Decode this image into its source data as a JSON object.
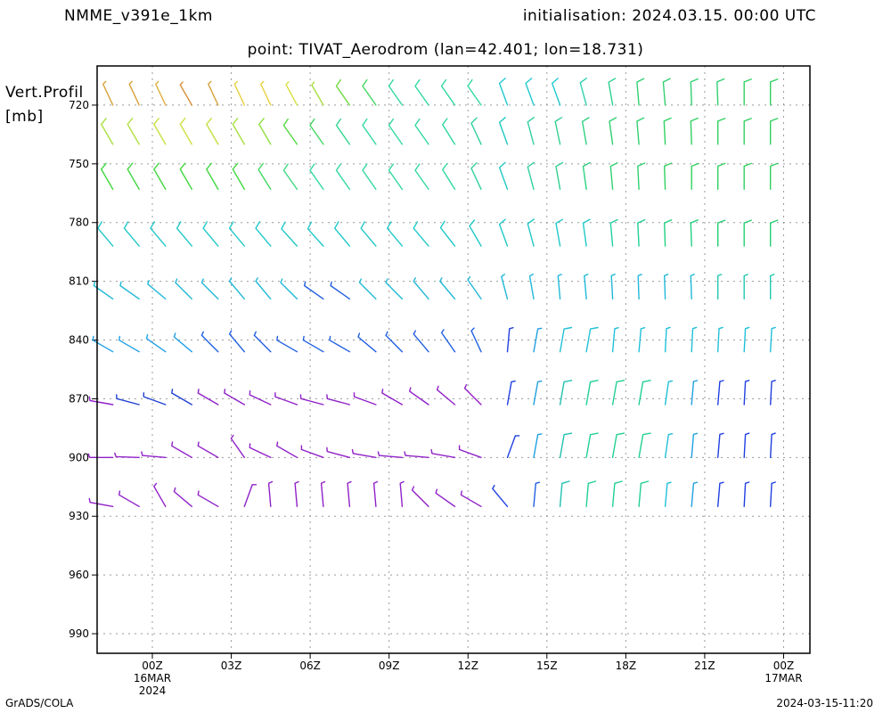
{
  "header": {
    "model": "NMME_v391e_1km",
    "initialisation": "initialisation: 2024.03.15. 00:00 UTC",
    "point": "point: TIVAT_Aerodrom (lan=42.401; lon=18.731)"
  },
  "footer": {
    "left": "GrADS/COLA",
    "right": "2024-03-15-11:20"
  },
  "chart_data": {
    "type": "wind_barb_time_height",
    "ylabel": "Vert.Profil",
    "yunit": "[mb]",
    "yticks": [
      720,
      750,
      780,
      810,
      840,
      870,
      900,
      930,
      960,
      990
    ],
    "ylim": [
      700,
      1000
    ],
    "xlim_hours": [
      -2.1,
      25
    ],
    "xticks": [
      {
        "hour": 0,
        "label": "00Z",
        "sub1": "16MAR",
        "sub2": "2024"
      },
      {
        "hour": 3,
        "label": "03Z"
      },
      {
        "hour": 6,
        "label": "06Z"
      },
      {
        "hour": 9,
        "label": "09Z"
      },
      {
        "hour": 12,
        "label": "12Z"
      },
      {
        "hour": 15,
        "label": "15Z"
      },
      {
        "hour": 18,
        "label": "18Z"
      },
      {
        "hour": 21,
        "label": "21Z"
      },
      {
        "hour": 24,
        "label": "00Z",
        "sub1": "17MAR"
      }
    ],
    "grid": true,
    "time_hours": [
      -1.5,
      -0.5,
      0.5,
      1.5,
      2.5,
      3.5,
      4.5,
      5.5,
      6.5,
      7.5,
      8.5,
      9.5,
      10.5,
      11.5,
      12.5,
      13.5,
      14.5,
      15.5,
      16.5,
      17.5,
      18.5,
      19.5,
      20.5,
      21.5,
      22.5,
      23.5
    ],
    "levels_mb": [
      720,
      740,
      763,
      792,
      819,
      846,
      873,
      900,
      925
    ],
    "barbs": [
      [
        [
          335,
          7,
          "#d8a23a"
        ],
        [
          335,
          7,
          "#d8a23a"
        ],
        [
          335,
          7,
          "#e0b040"
        ],
        [
          330,
          7,
          "#d8903a"
        ],
        [
          335,
          7,
          "#d8a23a"
        ],
        [
          335,
          7,
          "#e8d040"
        ],
        [
          335,
          7,
          "#e8d040"
        ],
        [
          332,
          7,
          "#d8e040"
        ],
        [
          330,
          7,
          "#a8e040"
        ],
        [
          325,
          8,
          "#70d840"
        ],
        [
          325,
          8,
          "#40d860"
        ],
        [
          325,
          8,
          "#30d8a0"
        ],
        [
          325,
          8,
          "#30d8a0"
        ],
        [
          325,
          8,
          "#30d8a0"
        ],
        [
          325,
          8,
          "#30d8a0"
        ],
        [
          340,
          9,
          "#20c8d0"
        ],
        [
          340,
          9,
          "#20c8d0"
        ],
        [
          340,
          9,
          "#20c8d0"
        ],
        [
          345,
          10,
          "#30d0b0"
        ],
        [
          350,
          10,
          "#30d090"
        ],
        [
          355,
          10,
          "#30d070"
        ],
        [
          355,
          10,
          "#30d070"
        ],
        [
          358,
          10,
          "#30d070"
        ],
        [
          358,
          10,
          "#30d070"
        ],
        [
          360,
          10,
          "#30d060"
        ],
        [
          360,
          10,
          "#30d060"
        ]
      ],
      [
        [
          330,
          8,
          "#a8e040"
        ],
        [
          330,
          8,
          "#b0e040"
        ],
        [
          330,
          8,
          "#c8e040"
        ],
        [
          330,
          8,
          "#d0e040"
        ],
        [
          330,
          8,
          "#c0e040"
        ],
        [
          330,
          8,
          "#a8e040"
        ],
        [
          330,
          8,
          "#90e040"
        ],
        [
          325,
          9,
          "#50d840"
        ],
        [
          325,
          9,
          "#40d860"
        ],
        [
          325,
          9,
          "#30d890"
        ],
        [
          325,
          9,
          "#30d8a0"
        ],
        [
          325,
          9,
          "#30d8a0"
        ],
        [
          325,
          9,
          "#30d8a0"
        ],
        [
          328,
          9,
          "#30d8a0"
        ],
        [
          335,
          9,
          "#30d0a0"
        ],
        [
          340,
          9,
          "#20c8c0"
        ],
        [
          345,
          10,
          "#30d0a0"
        ],
        [
          348,
          10,
          "#30d090"
        ],
        [
          350,
          10,
          "#30d080"
        ],
        [
          352,
          10,
          "#30d070"
        ],
        [
          355,
          10,
          "#30d070"
        ],
        [
          357,
          10,
          "#30d060"
        ],
        [
          358,
          10,
          "#30d060"
        ],
        [
          360,
          10,
          "#30d060"
        ],
        [
          360,
          10,
          "#30d060"
        ],
        [
          360,
          10,
          "#30d060"
        ]
      ],
      [
        [
          330,
          9,
          "#40d840"
        ],
        [
          330,
          9,
          "#40d840"
        ],
        [
          330,
          9,
          "#40d840"
        ],
        [
          330,
          9,
          "#40d840"
        ],
        [
          330,
          9,
          "#40d840"
        ],
        [
          330,
          9,
          "#40d840"
        ],
        [
          328,
          9,
          "#40d860"
        ],
        [
          325,
          9,
          "#40d880"
        ],
        [
          325,
          9,
          "#30d8a0"
        ],
        [
          325,
          9,
          "#30d8a0"
        ],
        [
          325,
          9,
          "#30d8a0"
        ],
        [
          325,
          9,
          "#30d8a0"
        ],
        [
          325,
          9,
          "#30d8a0"
        ],
        [
          328,
          9,
          "#30d8a0"
        ],
        [
          335,
          9,
          "#30d0a0"
        ],
        [
          340,
          9,
          "#20c8c0"
        ],
        [
          345,
          10,
          "#30d0a0"
        ],
        [
          350,
          10,
          "#30d090"
        ],
        [
          352,
          10,
          "#30d080"
        ],
        [
          355,
          10,
          "#30d070"
        ],
        [
          357,
          10,
          "#30d070"
        ],
        [
          358,
          10,
          "#30d060"
        ],
        [
          360,
          10,
          "#30d060"
        ],
        [
          360,
          10,
          "#30d060"
        ],
        [
          360,
          10,
          "#30d060"
        ],
        [
          360,
          10,
          "#30d060"
        ]
      ],
      [
        [
          320,
          8,
          "#20c8c8"
        ],
        [
          320,
          8,
          "#20c8c8"
        ],
        [
          320,
          8,
          "#20c8c8"
        ],
        [
          320,
          8,
          "#20c8c8"
        ],
        [
          320,
          8,
          "#20c8c8"
        ],
        [
          320,
          8,
          "#20c8c8"
        ],
        [
          320,
          8,
          "#20c8c8"
        ],
        [
          318,
          8,
          "#20c8c8"
        ],
        [
          318,
          8,
          "#20c8c8"
        ],
        [
          320,
          8,
          "#20c8c8"
        ],
        [
          320,
          8,
          "#20c8c8"
        ],
        [
          320,
          8,
          "#20c8c8"
        ],
        [
          320,
          8,
          "#20c8c8"
        ],
        [
          322,
          8,
          "#20c8c8"
        ],
        [
          330,
          8,
          "#20c8c8"
        ],
        [
          340,
          8,
          "#20c8c8"
        ],
        [
          345,
          8,
          "#20c8c8"
        ],
        [
          350,
          8,
          "#20c8c8"
        ],
        [
          352,
          8,
          "#20c8c8"
        ],
        [
          355,
          9,
          "#20d0a0"
        ],
        [
          357,
          9,
          "#20d090"
        ],
        [
          358,
          9,
          "#20d080"
        ],
        [
          358,
          9,
          "#20d080"
        ],
        [
          360,
          9,
          "#20d070"
        ],
        [
          360,
          9,
          "#20d070"
        ],
        [
          360,
          9,
          "#20d070"
        ]
      ],
      [
        [
          305,
          6,
          "#20b8d8"
        ],
        [
          305,
          6,
          "#20b8d8"
        ],
        [
          310,
          7,
          "#20b8d8"
        ],
        [
          315,
          7,
          "#20b8d8"
        ],
        [
          315,
          7,
          "#20b8d8"
        ],
        [
          320,
          7,
          "#20b8d8"
        ],
        [
          320,
          7,
          "#20b8d8"
        ],
        [
          315,
          7,
          "#20b8d8"
        ],
        [
          305,
          6,
          "#2060e0"
        ],
        [
          305,
          6,
          "#2060e0"
        ],
        [
          315,
          7,
          "#20b8d8"
        ],
        [
          315,
          7,
          "#20b8d8"
        ],
        [
          320,
          7,
          "#20b8d8"
        ],
        [
          320,
          7,
          "#20b8d8"
        ],
        [
          325,
          7,
          "#20b8d8"
        ],
        [
          345,
          6,
          "#20b8d8"
        ],
        [
          350,
          6,
          "#20b8d8"
        ],
        [
          355,
          6,
          "#20b8d8"
        ],
        [
          355,
          6,
          "#20b8d8"
        ],
        [
          357,
          6,
          "#20b8d8"
        ],
        [
          358,
          6,
          "#20b8d8"
        ],
        [
          358,
          6,
          "#20b8d8"
        ],
        [
          358,
          6,
          "#20b8d8"
        ],
        [
          360,
          7,
          "#20c8b0"
        ],
        [
          360,
          7,
          "#20c8b0"
        ],
        [
          360,
          7,
          "#20c8b0"
        ]
      ],
      [
        [
          300,
          5,
          "#20a0e8"
        ],
        [
          300,
          5,
          "#20a0e8"
        ],
        [
          305,
          5,
          "#20a0e8"
        ],
        [
          310,
          6,
          "#20a0e8"
        ],
        [
          315,
          6,
          "#2060e0"
        ],
        [
          320,
          6,
          "#2060e0"
        ],
        [
          315,
          6,
          "#2060e0"
        ],
        [
          300,
          6,
          "#2060e0"
        ],
        [
          300,
          6,
          "#2060e0"
        ],
        [
          300,
          6,
          "#2060e0"
        ],
        [
          310,
          6,
          "#2060e0"
        ],
        [
          315,
          6,
          "#2060e0"
        ],
        [
          320,
          6,
          "#2060e0"
        ],
        [
          325,
          6,
          "#2060e0"
        ],
        [
          335,
          5,
          "#2060e0"
        ],
        [
          5,
          5,
          "#2040e0"
        ],
        [
          10,
          7,
          "#20a0e0"
        ],
        [
          10,
          8,
          "#20c0d8"
        ],
        [
          10,
          8,
          "#20c0d8"
        ],
        [
          5,
          7,
          "#20c0d8"
        ],
        [
          5,
          7,
          "#20c0d8"
        ],
        [
          3,
          7,
          "#20c0d8"
        ],
        [
          3,
          7,
          "#20c0d8"
        ],
        [
          3,
          7,
          "#20c0d8"
        ],
        [
          3,
          7,
          "#20c0d8"
        ],
        [
          3,
          7,
          "#20c0d8"
        ]
      ],
      [
        [
          280,
          5,
          "#9020c8"
        ],
        [
          285,
          5,
          "#2040d0"
        ],
        [
          290,
          5,
          "#2040d0"
        ],
        [
          300,
          5,
          "#2040d0"
        ],
        [
          300,
          5,
          "#9020c8"
        ],
        [
          300,
          5,
          "#9020c8"
        ],
        [
          295,
          5,
          "#9020c8"
        ],
        [
          290,
          5,
          "#9020c8"
        ],
        [
          285,
          5,
          "#9020c8"
        ],
        [
          285,
          5,
          "#9020c8"
        ],
        [
          290,
          5,
          "#9020c8"
        ],
        [
          300,
          5,
          "#9020c8"
        ],
        [
          305,
          5,
          "#9020c8"
        ],
        [
          310,
          5,
          "#9020c8"
        ],
        [
          315,
          5,
          "#9020c8"
        ],
        [
          10,
          5,
          "#2040e0"
        ],
        [
          10,
          6,
          "#20a0e0"
        ],
        [
          10,
          8,
          "#20c0b0"
        ],
        [
          10,
          8,
          "#20d090"
        ],
        [
          10,
          8,
          "#20d090"
        ],
        [
          10,
          8,
          "#20d090"
        ],
        [
          8,
          7,
          "#20c0d8"
        ],
        [
          5,
          6,
          "#20a0e0"
        ],
        [
          5,
          6,
          "#2040e0"
        ],
        [
          3,
          6,
          "#2040e0"
        ],
        [
          3,
          6,
          "#2040e0"
        ]
      ],
      [
        [
          270,
          5,
          "#9020c8"
        ],
        [
          272,
          5,
          "#9020c8"
        ],
        [
          275,
          5,
          "#9020c8"
        ],
        [
          300,
          5,
          "#9020c8"
        ],
        [
          300,
          5,
          "#9020c8"
        ],
        [
          325,
          5,
          "#9020c8"
        ],
        [
          295,
          5,
          "#9020c8"
        ],
        [
          300,
          5,
          "#9020c8"
        ],
        [
          290,
          5,
          "#9020c8"
        ],
        [
          285,
          5,
          "#9020c8"
        ],
        [
          280,
          5,
          "#9020c8"
        ],
        [
          275,
          5,
          "#9020c8"
        ],
        [
          275,
          5,
          "#9020c8"
        ],
        [
          280,
          5,
          "#9020c8"
        ],
        [
          290,
          5,
          "#9020c8"
        ],
        [
          20,
          5,
          "#2040e0"
        ],
        [
          10,
          6,
          "#20a0e0"
        ],
        [
          10,
          8,
          "#20c0b0"
        ],
        [
          10,
          8,
          "#20d090"
        ],
        [
          10,
          8,
          "#20d090"
        ],
        [
          10,
          8,
          "#20d090"
        ],
        [
          8,
          7,
          "#20c0d8"
        ],
        [
          5,
          6,
          "#20a0e0"
        ],
        [
          5,
          6,
          "#2040e0"
        ],
        [
          3,
          6,
          "#2040e0"
        ],
        [
          3,
          6,
          "#2040e0"
        ]
      ],
      [
        [
          280,
          5,
          "#9020c8"
        ],
        [
          300,
          5,
          "#9020c8"
        ],
        [
          330,
          5,
          "#9020c8"
        ],
        [
          310,
          5,
          "#9020c8"
        ],
        [
          300,
          5,
          "#9020c8"
        ],
        [
          20,
          5,
          "#9020c8"
        ],
        [
          355,
          5,
          "#9020c8"
        ],
        [
          355,
          5,
          "#9020c8"
        ],
        [
          355,
          5,
          "#9020c8"
        ],
        [
          355,
          5,
          "#9020c8"
        ],
        [
          355,
          5,
          "#9020c8"
        ],
        [
          355,
          5,
          "#9020c8"
        ],
        [
          315,
          5,
          "#9020c8"
        ],
        [
          305,
          5,
          "#9020c8"
        ],
        [
          300,
          5,
          "#9020c8"
        ],
        [
          320,
          5,
          "#2040e0"
        ],
        [
          5,
          6,
          "#2060e0"
        ],
        [
          5,
          8,
          "#20c0b0"
        ],
        [
          5,
          8,
          "#20d090"
        ],
        [
          5,
          8,
          "#20d090"
        ],
        [
          5,
          8,
          "#20d090"
        ],
        [
          5,
          7,
          "#20c0d8"
        ],
        [
          5,
          6,
          "#20a0e0"
        ],
        [
          5,
          6,
          "#2040e0"
        ],
        [
          3,
          6,
          "#2040e0"
        ],
        [
          3,
          6,
          "#2040e0"
        ]
      ]
    ]
  }
}
